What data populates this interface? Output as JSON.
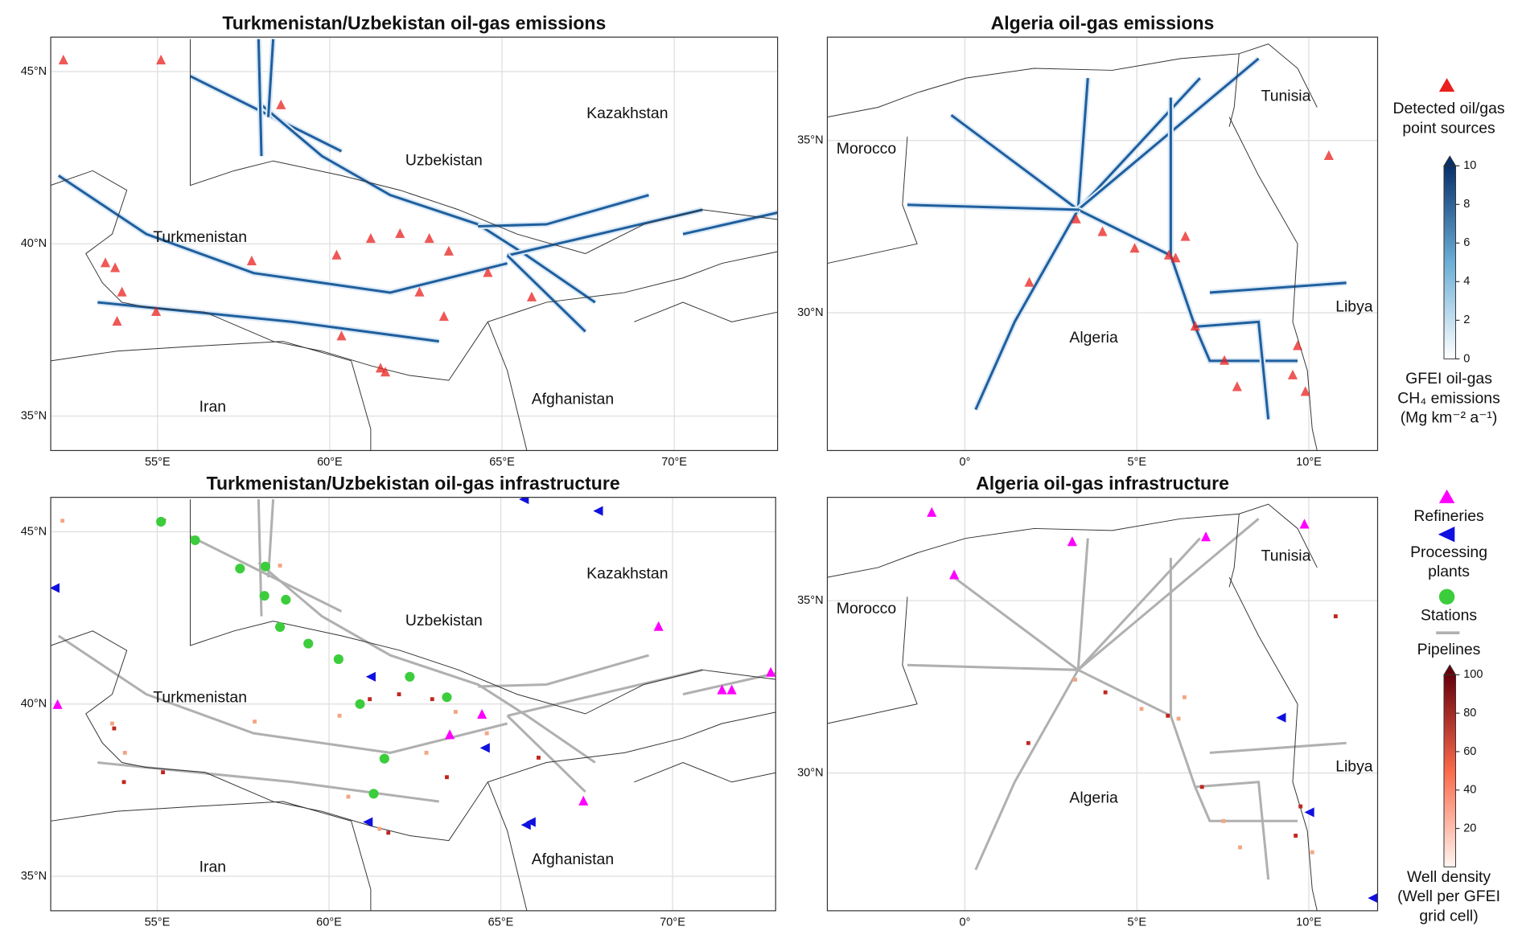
{
  "panels": [
    {
      "title": "Turkmenistan/Uzbekistan oil-gas emissions",
      "labels": [
        "Kazakhstan",
        "Uzbekistan",
        "Turkmenistan",
        "Iran",
        "Afghanistan"
      ],
      "xlim": [
        51.9,
        73
      ],
      "ylim": [
        34,
        46
      ],
      "xticks": [
        {
          "value": 55,
          "label": "55°E"
        },
        {
          "value": 60,
          "label": "60°E"
        },
        {
          "value": 65,
          "label": "65°E"
        },
        {
          "value": 70,
          "label": "70°E"
        }
      ],
      "yticks": [
        {
          "value": 35,
          "label": "35°N"
        },
        {
          "value": 40,
          "label": "40°N"
        },
        {
          "value": 45,
          "label": "45°N"
        }
      ]
    },
    {
      "title": "Algeria oil-gas emissions",
      "labels": [
        "Tunisia",
        "Morocco",
        "Algeria",
        "Libya"
      ],
      "xlim": [
        -4,
        12
      ],
      "ylim": [
        26,
        38
      ],
      "xticks": [
        {
          "value": 0,
          "label": "0°"
        },
        {
          "value": 5,
          "label": "5°E"
        },
        {
          "value": 10,
          "label": "10°E"
        }
      ],
      "yticks": [
        {
          "value": 30,
          "label": "30°N"
        },
        {
          "value": 35,
          "label": "35°N"
        }
      ]
    },
    {
      "title": "Turkmenistan/Uzbekistan oil-gas infrastructure",
      "labels": [
        "Kazakhstan",
        "Uzbekistan",
        "Turkmenistan",
        "Iran",
        "Afghanistan"
      ],
      "xlim": [
        51.9,
        73
      ],
      "ylim": [
        34,
        46
      ],
      "xticks": [
        {
          "value": 55,
          "label": "55°E"
        },
        {
          "value": 60,
          "label": "60°E"
        },
        {
          "value": 65,
          "label": "65°E"
        },
        {
          "value": 70,
          "label": "70°E"
        }
      ],
      "yticks": [
        {
          "value": 35,
          "label": "35°N"
        },
        {
          "value": 40,
          "label": "40°N"
        },
        {
          "value": 45,
          "label": "45°N"
        }
      ]
    },
    {
      "title": "Algeria oil-gas infrastructure",
      "labels": [
        "Tunisia",
        "Morocco",
        "Algeria",
        "Libya"
      ],
      "xlim": [
        -4,
        12
      ],
      "ylim": [
        26,
        38
      ],
      "xticks": [
        {
          "value": 0,
          "label": "0°"
        },
        {
          "value": 5,
          "label": "5°E"
        },
        {
          "value": 10,
          "label": "10°E"
        }
      ],
      "yticks": [
        {
          "value": 30,
          "label": "30°N"
        },
        {
          "value": 35,
          "label": "35°N"
        }
      ]
    }
  ],
  "legend_emissions": {
    "marker_label": [
      "Detected oil/gas",
      "point sources"
    ],
    "colorbar_lim": [
      0,
      10
    ],
    "colorbar_ticks": [
      0,
      2,
      4,
      6,
      8,
      10
    ],
    "colorbar_label": [
      "GFEI oil-gas",
      "CH₄ emissions",
      "(Mg km⁻² a⁻¹)"
    ]
  },
  "legend_infrastructure": {
    "refineries": "Refineries",
    "processing": [
      "Processing",
      "plants"
    ],
    "stations": "Stations",
    "pipelines": "Pipelines",
    "colorbar_lim": [
      0,
      100
    ],
    "colorbar_ticks": [
      20,
      40,
      60,
      80,
      100
    ],
    "colorbar_label": [
      "Well density",
      "(Well per GFEI",
      "grid cell)"
    ]
  }
}
